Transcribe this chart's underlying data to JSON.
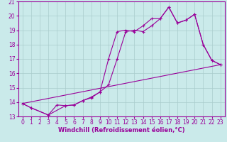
{
  "xlabel": "Windchill (Refroidissement éolien,°C)",
  "ylabel": "",
  "bg_color": "#caeaea",
  "grid_color": "#aacccc",
  "line_color": "#990099",
  "marker": "+",
  "xlim": [
    -0.5,
    23.5
  ],
  "ylim": [
    13,
    21
  ],
  "xticks": [
    0,
    1,
    2,
    3,
    4,
    5,
    6,
    7,
    8,
    9,
    10,
    11,
    12,
    13,
    14,
    15,
    16,
    17,
    18,
    19,
    20,
    21,
    22,
    23
  ],
  "yticks": [
    13,
    14,
    15,
    16,
    17,
    18,
    19,
    20,
    21
  ],
  "series1_x": [
    0,
    1,
    3,
    4,
    5,
    6,
    7,
    8,
    9,
    10,
    11,
    12,
    13,
    14,
    15,
    16,
    17,
    18,
    19,
    20,
    21,
    22,
    23
  ],
  "series1_y": [
    13.9,
    13.6,
    13.1,
    13.8,
    13.75,
    13.8,
    14.1,
    14.3,
    14.7,
    15.2,
    17.0,
    18.9,
    19.0,
    18.9,
    19.3,
    19.8,
    20.6,
    19.5,
    19.7,
    20.1,
    18.0,
    16.9,
    16.6
  ],
  "series2_x": [
    0,
    1,
    3,
    5,
    6,
    7,
    8,
    9,
    10,
    11,
    12,
    13,
    14,
    15,
    16,
    17,
    18,
    19,
    20,
    21,
    22,
    23
  ],
  "series2_y": [
    13.9,
    13.6,
    13.1,
    13.75,
    13.8,
    14.1,
    14.35,
    14.7,
    17.0,
    18.9,
    19.0,
    18.9,
    19.3,
    19.8,
    19.8,
    20.6,
    19.5,
    19.7,
    20.1,
    18.0,
    16.9,
    16.6
  ],
  "series3_x": [
    0,
    23
  ],
  "series3_y": [
    13.9,
    16.6
  ],
  "xlabel_fontsize": 6,
  "tick_fontsize": 5.5
}
